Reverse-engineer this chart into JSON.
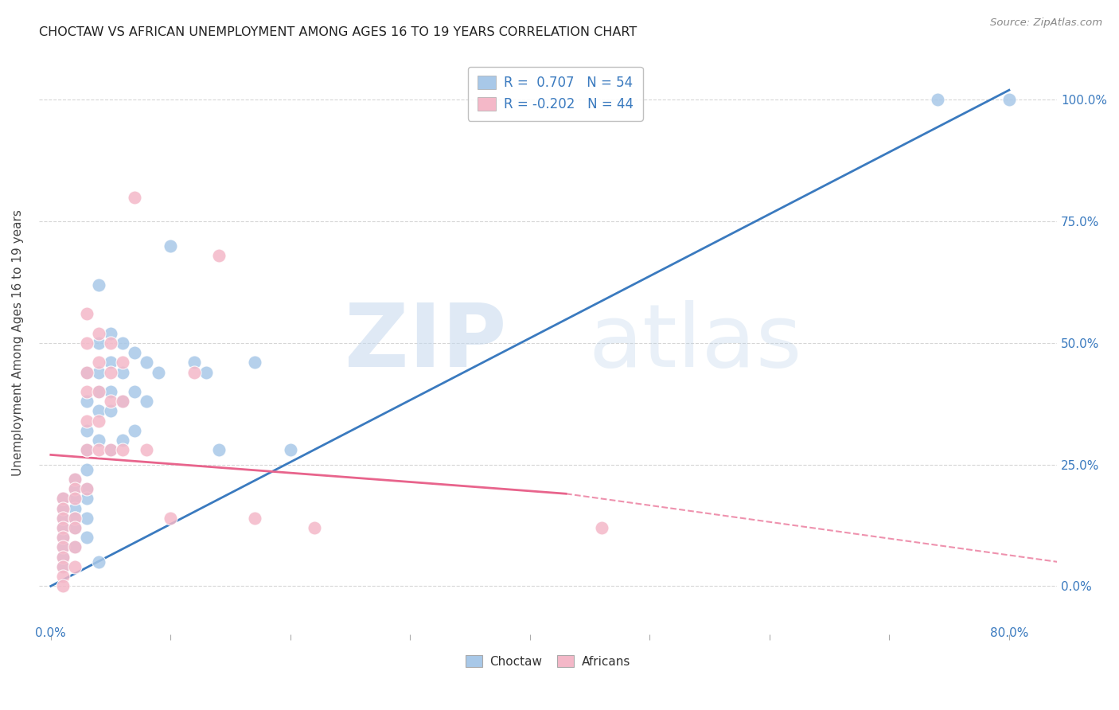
{
  "title": "CHOCTAW VS AFRICAN UNEMPLOYMENT AMONG AGES 16 TO 19 YEARS CORRELATION CHART",
  "source": "Source: ZipAtlas.com",
  "ylabel": "Unemployment Among Ages 16 to 19 years",
  "right_yticklabels": [
    "0.0%",
    "25.0%",
    "50.0%",
    "75.0%",
    "100.0%"
  ],
  "right_ytick_vals": [
    0.0,
    0.25,
    0.5,
    0.75,
    1.0
  ],
  "xlim": [
    -0.01,
    0.84
  ],
  "ylim": [
    -0.1,
    1.1
  ],
  "choctaw_color": "#a8c8e8",
  "african_color": "#f4b8c8",
  "trendline_choctaw_color": "#3a7abf",
  "trendline_african_color": "#e8648c",
  "legend_r_choctaw": "0.707",
  "legend_n_choctaw": "54",
  "legend_r_african": "-0.202",
  "legend_n_african": "44",
  "background_color": "#ffffff",
  "grid_color": "#cccccc",
  "choctaw_x": [
    0.01,
    0.01,
    0.01,
    0.01,
    0.01,
    0.01,
    0.01,
    0.01,
    0.02,
    0.02,
    0.02,
    0.02,
    0.02,
    0.02,
    0.02,
    0.03,
    0.03,
    0.03,
    0.03,
    0.03,
    0.03,
    0.03,
    0.03,
    0.03,
    0.04,
    0.04,
    0.04,
    0.04,
    0.04,
    0.04,
    0.04,
    0.05,
    0.05,
    0.05,
    0.05,
    0.05,
    0.06,
    0.06,
    0.06,
    0.06,
    0.07,
    0.07,
    0.07,
    0.08,
    0.08,
    0.09,
    0.1,
    0.12,
    0.13,
    0.14,
    0.17,
    0.2,
    0.74,
    0.8
  ],
  "choctaw_y": [
    0.18,
    0.16,
    0.14,
    0.12,
    0.1,
    0.08,
    0.06,
    0.04,
    0.22,
    0.2,
    0.18,
    0.16,
    0.14,
    0.12,
    0.08,
    0.44,
    0.38,
    0.32,
    0.28,
    0.24,
    0.2,
    0.18,
    0.14,
    0.1,
    0.62,
    0.5,
    0.44,
    0.4,
    0.36,
    0.3,
    0.05,
    0.52,
    0.46,
    0.4,
    0.36,
    0.28,
    0.5,
    0.44,
    0.38,
    0.3,
    0.48,
    0.4,
    0.32,
    0.46,
    0.38,
    0.44,
    0.7,
    0.46,
    0.44,
    0.28,
    0.46,
    0.28,
    1.0,
    1.0
  ],
  "african_x": [
    0.01,
    0.01,
    0.01,
    0.01,
    0.01,
    0.01,
    0.01,
    0.01,
    0.01,
    0.01,
    0.02,
    0.02,
    0.02,
    0.02,
    0.02,
    0.02,
    0.02,
    0.03,
    0.03,
    0.03,
    0.03,
    0.03,
    0.03,
    0.03,
    0.04,
    0.04,
    0.04,
    0.04,
    0.04,
    0.05,
    0.05,
    0.05,
    0.05,
    0.06,
    0.06,
    0.06,
    0.07,
    0.08,
    0.1,
    0.12,
    0.14,
    0.17,
    0.22,
    0.46
  ],
  "african_y": [
    0.18,
    0.16,
    0.14,
    0.12,
    0.1,
    0.08,
    0.06,
    0.04,
    0.02,
    0.0,
    0.22,
    0.2,
    0.18,
    0.14,
    0.12,
    0.08,
    0.04,
    0.56,
    0.5,
    0.44,
    0.4,
    0.34,
    0.28,
    0.2,
    0.52,
    0.46,
    0.4,
    0.34,
    0.28,
    0.5,
    0.44,
    0.38,
    0.28,
    0.46,
    0.38,
    0.28,
    0.8,
    0.28,
    0.14,
    0.44,
    0.68,
    0.14,
    0.12,
    0.12
  ],
  "choctaw_trendline": [
    0.0,
    0.8,
    0.0,
    1.02
  ],
  "african_trendline_solid": [
    0.0,
    0.43,
    0.27,
    0.19
  ],
  "african_trendline_dashed": [
    0.43,
    0.84,
    0.19,
    0.05
  ]
}
